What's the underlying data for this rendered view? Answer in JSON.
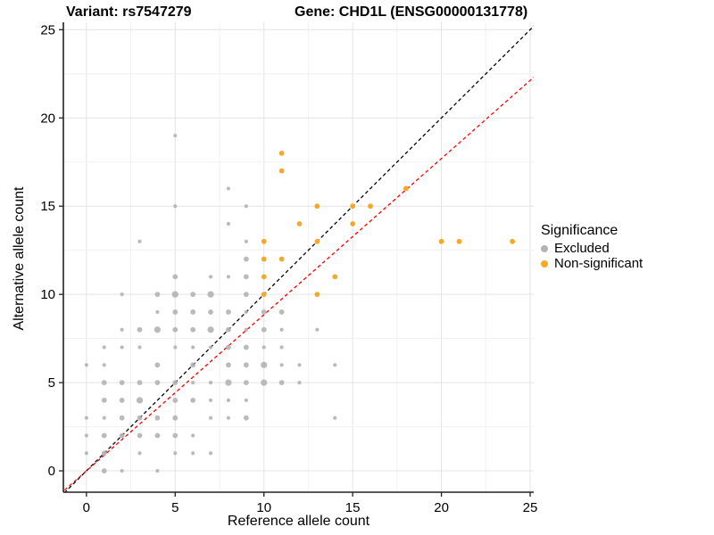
{
  "header": {
    "title_left": "Variant: rs7547279",
    "title_right": "Gene: CHD1L (ENSG00000131778)"
  },
  "chart_data": {
    "type": "scatter",
    "xlabel": "Reference allele count",
    "ylabel": "Alternative allele count",
    "xlim": [
      -1.3,
      25.2
    ],
    "ylim": [
      -1.21,
      25.42
    ],
    "xticks": [
      0,
      5,
      10,
      15,
      20,
      25
    ],
    "yticks": [
      0,
      5,
      10,
      15,
      20,
      25
    ],
    "minor_step": 2.5,
    "grid": true,
    "colors": {
      "excluded": "#B3B3B3",
      "non_significant": "#F9A825",
      "identity_line": "#000000",
      "fit_line": "#FF0000",
      "grid_major": "#E4E4E4",
      "grid_minor": "#F1F1F1",
      "axis": "#222222"
    },
    "legend": {
      "title": "Significance",
      "position": "right",
      "entries": [
        {
          "label": "Excluded",
          "color": "#B3B3B3"
        },
        {
          "label": "Non-significant",
          "color": "#F9A825"
        }
      ]
    },
    "lines": [
      {
        "name": "identity-line",
        "color": "#000000",
        "dash": [
          4,
          3
        ],
        "slope": 1.0,
        "intercept": 0
      },
      {
        "name": "fit-line",
        "color": "#FF0000",
        "dash": [
          4,
          3
        ],
        "slope": 0.885,
        "intercept": 0
      }
    ],
    "size_radius": {
      "1": 2.1,
      "2": 2.9,
      "3": 3.6
    },
    "series": [
      {
        "name": "Excluded",
        "color": "#B3B3B3",
        "points": [
          [
            1,
            0,
            2
          ],
          [
            2,
            0,
            1
          ],
          [
            4,
            0,
            1
          ],
          [
            0,
            1,
            1
          ],
          [
            1,
            1,
            2
          ],
          [
            3,
            1,
            1
          ],
          [
            5,
            1,
            1
          ],
          [
            6,
            1,
            1
          ],
          [
            7,
            1,
            1
          ],
          [
            0,
            2,
            1
          ],
          [
            1,
            2,
            2
          ],
          [
            2,
            2,
            2
          ],
          [
            3,
            2,
            2
          ],
          [
            4,
            2,
            2
          ],
          [
            5,
            2,
            2
          ],
          [
            6,
            2,
            1
          ],
          [
            0,
            3,
            1
          ],
          [
            1,
            3,
            1
          ],
          [
            2,
            3,
            2
          ],
          [
            3,
            3,
            2
          ],
          [
            4,
            3,
            2
          ],
          [
            5,
            3,
            2
          ],
          [
            7,
            3,
            1
          ],
          [
            8,
            3,
            1
          ],
          [
            9,
            3,
            2
          ],
          [
            14,
            3,
            1
          ],
          [
            1,
            4,
            2
          ],
          [
            2,
            4,
            2
          ],
          [
            3,
            4,
            3
          ],
          [
            5,
            4,
            2
          ],
          [
            6,
            4,
            2
          ],
          [
            7,
            4,
            1
          ],
          [
            8,
            4,
            1
          ],
          [
            9,
            4,
            1
          ],
          [
            1,
            5,
            2
          ],
          [
            2,
            5,
            2
          ],
          [
            3,
            5,
            2
          ],
          [
            4,
            5,
            2
          ],
          [
            5,
            5,
            2
          ],
          [
            6,
            5,
            1
          ],
          [
            7,
            5,
            1
          ],
          [
            8,
            5,
            3
          ],
          [
            9,
            5,
            2
          ],
          [
            10,
            5,
            3
          ],
          [
            11,
            5,
            2
          ],
          [
            12,
            5,
            1
          ],
          [
            0,
            6,
            1
          ],
          [
            1,
            6,
            1
          ],
          [
            4,
            6,
            2
          ],
          [
            6,
            6,
            2
          ],
          [
            8,
            6,
            2
          ],
          [
            9,
            6,
            2
          ],
          [
            10,
            6,
            3
          ],
          [
            11,
            6,
            1
          ],
          [
            12,
            6,
            1
          ],
          [
            14,
            6,
            1
          ],
          [
            1,
            7,
            1
          ],
          [
            2,
            7,
            1
          ],
          [
            3,
            7,
            1
          ],
          [
            5,
            7,
            1
          ],
          [
            6,
            7,
            1
          ],
          [
            7,
            7,
            1
          ],
          [
            8,
            7,
            2
          ],
          [
            9,
            7,
            2
          ],
          [
            10,
            7,
            1
          ],
          [
            11,
            7,
            1
          ],
          [
            2,
            8,
            1
          ],
          [
            3,
            8,
            2
          ],
          [
            4,
            8,
            3
          ],
          [
            5,
            8,
            2
          ],
          [
            6,
            8,
            2
          ],
          [
            7,
            8,
            3
          ],
          [
            8,
            8,
            2
          ],
          [
            9,
            8,
            1
          ],
          [
            10,
            8,
            2
          ],
          [
            11,
            8,
            1
          ],
          [
            13,
            8,
            1
          ],
          [
            4,
            9,
            1
          ],
          [
            5,
            9,
            2
          ],
          [
            6,
            9,
            2
          ],
          [
            7,
            9,
            2
          ],
          [
            8,
            9,
            2
          ],
          [
            9,
            9,
            1
          ],
          [
            10,
            9,
            2
          ],
          [
            11,
            9,
            2
          ],
          [
            2,
            10,
            1
          ],
          [
            4,
            10,
            2
          ],
          [
            5,
            10,
            3
          ],
          [
            6,
            10,
            2
          ],
          [
            7,
            10,
            3
          ],
          [
            9,
            10,
            2
          ],
          [
            5,
            11,
            2
          ],
          [
            7,
            11,
            1
          ],
          [
            8,
            11,
            1
          ],
          [
            9,
            11,
            2
          ],
          [
            9,
            12,
            2
          ],
          [
            3,
            13,
            1
          ],
          [
            9,
            13,
            1
          ],
          [
            8,
            14,
            1
          ],
          [
            5,
            15,
            1
          ],
          [
            9,
            15,
            1
          ],
          [
            8,
            16,
            1
          ],
          [
            5,
            19,
            1
          ]
        ]
      },
      {
        "name": "Non-significant",
        "color": "#F9A825",
        "points": [
          [
            10,
            10,
            2
          ],
          [
            13,
            10,
            2
          ],
          [
            10,
            11,
            2
          ],
          [
            14,
            11,
            2
          ],
          [
            10,
            12,
            2
          ],
          [
            11,
            12,
            2
          ],
          [
            10,
            13,
            2
          ],
          [
            13,
            13,
            2
          ],
          [
            20,
            13,
            2
          ],
          [
            21,
            13,
            2
          ],
          [
            24,
            13,
            2
          ],
          [
            12,
            14,
            2
          ],
          [
            15,
            14,
            2
          ],
          [
            13,
            15,
            2
          ],
          [
            15,
            15,
            2
          ],
          [
            16,
            15,
            2
          ],
          [
            18,
            16,
            2
          ],
          [
            11,
            17,
            2
          ],
          [
            11,
            18,
            2
          ]
        ]
      }
    ]
  }
}
